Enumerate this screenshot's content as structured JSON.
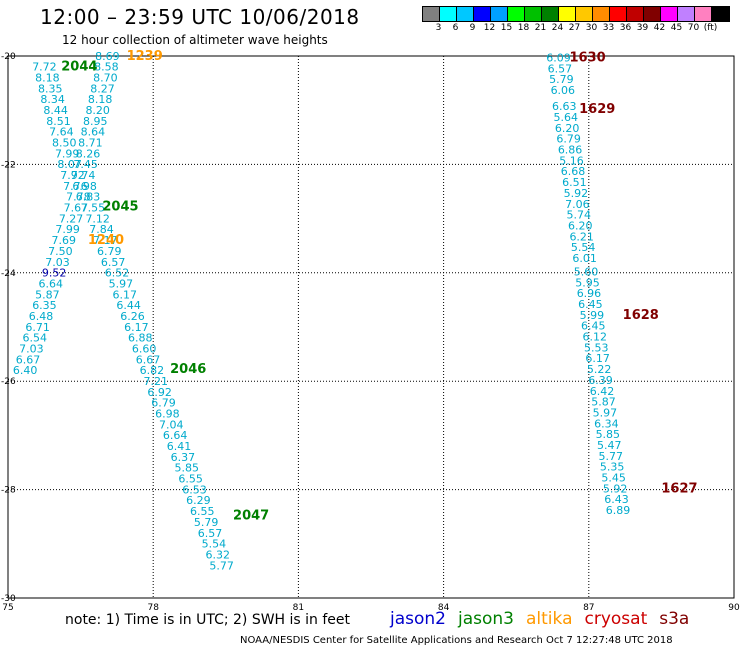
{
  "header": {
    "title": "12:00 – 23:59 UTC 10/06/2018",
    "subtitle": "12 hour collection of altimeter wave heights"
  },
  "legend": {
    "colors": [
      "#808080",
      "#00ffff",
      "#00c8ff",
      "#0000ff",
      "#00a0ff",
      "#00ff00",
      "#00c000",
      "#008000",
      "#ffff00",
      "#ffc800",
      "#ff8c00",
      "#ff0000",
      "#c00000",
      "#800000",
      "#ff00ff",
      "#c080ff",
      "#ff80c0",
      "#000000"
    ],
    "labels": [
      "3",
      "6",
      "9",
      "12",
      "15",
      "18",
      "21",
      "24",
      "27",
      "30",
      "33",
      "36",
      "39",
      "42",
      "45",
      "70",
      "(ft)"
    ]
  },
  "footer": {
    "note": "note: 1) Time is in UTC; 2) SWH is in feet",
    "satellites": [
      {
        "name": "jason2",
        "color": "#0000cc"
      },
      {
        "name": "jason3",
        "color": "#008000"
      },
      {
        "name": "altika",
        "color": "#ff9900"
      },
      {
        "name": "cryosat",
        "color": "#cc0000"
      },
      {
        "name": "s3a",
        "color": "#800000"
      }
    ],
    "credit": "NOAA/NESDIS Center for Satellite Applications and Research    Oct  7 12:27:48 UTC 2018"
  },
  "chart_data": {
    "type": "scatter",
    "title": "12:00 – 23:59 UTC 10/06/2018",
    "subtitle": "12 hour collection of altimeter wave heights",
    "xlabel": "",
    "ylabel": "",
    "xlim": [
      75,
      90
    ],
    "ylim": [
      -30,
      -20
    ],
    "x_ticks": [
      75,
      78,
      81,
      84,
      87,
      90
    ],
    "y_ticks": [
      -20,
      -22,
      -24,
      -26,
      -28,
      -30
    ],
    "grid": true,
    "point_color": "#00aacc",
    "series": [
      {
        "name": "jason3",
        "pass_labels": [
          {
            "text": "2044",
            "x": 76.1,
            "y": -20.27,
            "color": "#008000"
          },
          {
            "text": "2045",
            "x": 76.95,
            "y": -22.85,
            "color": "#008000"
          },
          {
            "text": "2046",
            "x": 78.35,
            "y": -25.85,
            "color": "#008000"
          },
          {
            "text": "2047",
            "x": 79.65,
            "y": -28.55,
            "color": "#008000"
          }
        ],
        "points": [
          {
            "x": 75.5,
            "y": -20.27,
            "v": "7.72"
          },
          {
            "x": 75.56,
            "y": -20.47,
            "v": "8.18"
          },
          {
            "x": 75.62,
            "y": -20.67,
            "v": "8.35"
          },
          {
            "x": 75.67,
            "y": -20.87,
            "v": "8.34"
          },
          {
            "x": 75.73,
            "y": -21.07,
            "v": "8.44"
          },
          {
            "x": 75.79,
            "y": -21.27,
            "v": "8.51"
          },
          {
            "x": 75.85,
            "y": -21.47,
            "v": "7.64"
          },
          {
            "x": 75.91,
            "y": -21.67,
            "v": "8.50"
          },
          {
            "x": 75.97,
            "y": -21.87,
            "v": "7.99"
          },
          {
            "x": 76.02,
            "y": -22.07,
            "v": "8.07"
          },
          {
            "x": 76.08,
            "y": -22.27,
            "v": "7.92"
          },
          {
            "x": 76.14,
            "y": -22.47,
            "v": "7.76"
          },
          {
            "x": 76.2,
            "y": -22.67,
            "v": "7.78"
          },
          {
            "x": 76.15,
            "y": -22.87,
            "v": "7.67"
          },
          {
            "x": 76.05,
            "y": -23.07,
            "v": "7.27"
          },
          {
            "x": 75.98,
            "y": -23.27,
            "v": "7.99"
          },
          {
            "x": 75.9,
            "y": -23.47,
            "v": "7.69"
          },
          {
            "x": 75.83,
            "y": -23.67,
            "v": "7.50"
          },
          {
            "x": 75.77,
            "y": -23.87,
            "v": "7.03"
          },
          {
            "x": 75.7,
            "y": -24.07,
            "v": "9.52",
            "color": "#0000aa"
          },
          {
            "x": 75.63,
            "y": -24.27,
            "v": "6.64"
          },
          {
            "x": 75.56,
            "y": -24.47,
            "v": "5.87"
          },
          {
            "x": 75.5,
            "y": -24.67,
            "v": "6.35"
          },
          {
            "x": 75.43,
            "y": -24.87,
            "v": "6.48"
          },
          {
            "x": 75.36,
            "y": -25.07,
            "v": "6.71"
          },
          {
            "x": 75.3,
            "y": -25.27,
            "v": "6.54"
          },
          {
            "x": 75.23,
            "y": -25.47,
            "v": "7.03"
          },
          {
            "x": 75.16,
            "y": -25.67,
            "v": "6.67"
          },
          {
            "x": 75.1,
            "y": -25.87,
            "v": "6.40"
          },
          {
            "x": 76.8,
            "y": -20.07,
            "v": "8.69"
          },
          {
            "x": 76.78,
            "y": -20.27,
            "v": "8.58"
          },
          {
            "x": 76.76,
            "y": -20.47,
            "v": "8.70"
          },
          {
            "x": 76.7,
            "y": -20.67,
            "v": "8.27"
          },
          {
            "x": 76.65,
            "y": -20.87,
            "v": "8.18"
          },
          {
            "x": 76.6,
            "y": -21.07,
            "v": "8.20"
          },
          {
            "x": 76.55,
            "y": -21.27,
            "v": "8.95"
          },
          {
            "x": 76.5,
            "y": -21.47,
            "v": "8.64"
          },
          {
            "x": 76.45,
            "y": -21.67,
            "v": "8.71"
          },
          {
            "x": 76.4,
            "y": -21.87,
            "v": "8.26"
          },
          {
            "x": 76.35,
            "y": -22.07,
            "v": "7.45"
          },
          {
            "x": 76.3,
            "y": -22.27,
            "v": "7.74"
          },
          {
            "x": 76.33,
            "y": -22.47,
            "v": "6.98"
          },
          {
            "x": 76.4,
            "y": -22.67,
            "v": "6.83"
          },
          {
            "x": 76.5,
            "y": -22.87,
            "v": "7.55"
          },
          {
            "x": 76.6,
            "y": -23.07,
            "v": "7.12"
          },
          {
            "x": 76.68,
            "y": -23.27,
            "v": "7.84"
          },
          {
            "x": 76.76,
            "y": -23.47,
            "v": "7.17"
          },
          {
            "x": 76.84,
            "y": -23.67,
            "v": "6.79"
          },
          {
            "x": 76.92,
            "y": -23.87,
            "v": "6.57"
          },
          {
            "x": 77.0,
            "y": -24.07,
            "v": "6.52"
          },
          {
            "x": 77.08,
            "y": -24.27,
            "v": "5.97"
          },
          {
            "x": 77.16,
            "y": -24.47,
            "v": "6.17"
          },
          {
            "x": 77.24,
            "y": -24.67,
            "v": "6.44"
          },
          {
            "x": 77.32,
            "y": -24.87,
            "v": "6.26"
          },
          {
            "x": 77.4,
            "y": -25.07,
            "v": "6.17"
          },
          {
            "x": 77.48,
            "y": -25.27,
            "v": "6.88"
          },
          {
            "x": 77.56,
            "y": -25.47,
            "v": "6.60"
          },
          {
            "x": 77.64,
            "y": -25.67,
            "v": "6.67"
          },
          {
            "x": 77.72,
            "y": -25.87,
            "v": "6.82"
          },
          {
            "x": 77.8,
            "y": -26.07,
            "v": "7.21"
          },
          {
            "x": 77.88,
            "y": -26.27,
            "v": "6.92"
          },
          {
            "x": 77.96,
            "y": -26.47,
            "v": "6.79"
          },
          {
            "x": 78.04,
            "y": -26.67,
            "v": "6.98"
          },
          {
            "x": 78.12,
            "y": -26.87,
            "v": "7.04"
          },
          {
            "x": 78.2,
            "y": -27.07,
            "v": "6.64"
          },
          {
            "x": 78.28,
            "y": -27.27,
            "v": "6.41"
          },
          {
            "x": 78.36,
            "y": -27.47,
            "v": "6.37"
          },
          {
            "x": 78.44,
            "y": -27.67,
            "v": "5.85"
          },
          {
            "x": 78.52,
            "y": -27.87,
            "v": "6.55"
          },
          {
            "x": 78.6,
            "y": -28.07,
            "v": "6.53"
          },
          {
            "x": 78.68,
            "y": -28.27,
            "v": "6.29"
          },
          {
            "x": 78.76,
            "y": -28.47,
            "v": "6.55"
          },
          {
            "x": 78.84,
            "y": -28.67,
            "v": "5.79"
          },
          {
            "x": 78.92,
            "y": -28.87,
            "v": "6.57"
          },
          {
            "x": 79.0,
            "y": -29.07,
            "v": "5.54"
          },
          {
            "x": 79.08,
            "y": -29.27,
            "v": "6.32"
          },
          {
            "x": 79.16,
            "y": -29.47,
            "v": "5.77"
          }
        ]
      },
      {
        "name": "altika",
        "pass_labels": [
          {
            "text": "1239",
            "x": 77.45,
            "y": -20.07,
            "color": "#ff9900"
          },
          {
            "text": "1240",
            "x": 76.65,
            "y": -23.47,
            "color": "#ff9900"
          }
        ],
        "points": []
      },
      {
        "name": "s3a",
        "pass_labels": [
          {
            "text": "1630",
            "x": 86.6,
            "y": -20.1,
            "color": "#800000"
          },
          {
            "text": "1629",
            "x": 86.8,
            "y": -21.05,
            "color": "#800000"
          },
          {
            "text": "1628",
            "x": 87.7,
            "y": -24.85,
            "color": "#800000"
          },
          {
            "text": "1627",
            "x": 88.5,
            "y": -28.05,
            "color": "#800000"
          }
        ],
        "points": [
          {
            "x": 86.12,
            "y": -20.1,
            "v": "6.09"
          },
          {
            "x": 86.15,
            "y": -20.3,
            "v": "6.57"
          },
          {
            "x": 86.18,
            "y": -20.5,
            "v": "5.79"
          },
          {
            "x": 86.21,
            "y": -20.7,
            "v": "6.06"
          },
          {
            "x": 86.24,
            "y": -21.0,
            "v": "6.63"
          },
          {
            "x": 86.27,
            "y": -21.2,
            "v": "5.64"
          },
          {
            "x": 86.3,
            "y": -21.4,
            "v": "6.20"
          },
          {
            "x": 86.33,
            "y": -21.6,
            "v": "6.79"
          },
          {
            "x": 86.36,
            "y": -21.8,
            "v": "6.86"
          },
          {
            "x": 86.39,
            "y": -22.0,
            "v": "5.16"
          },
          {
            "x": 86.42,
            "y": -22.2,
            "v": "6.68"
          },
          {
            "x": 86.45,
            "y": -22.4,
            "v": "6.51"
          },
          {
            "x": 86.48,
            "y": -22.6,
            "v": "5.92"
          },
          {
            "x": 86.51,
            "y": -22.8,
            "v": "7.06"
          },
          {
            "x": 86.54,
            "y": -23.0,
            "v": "5.74"
          },
          {
            "x": 86.57,
            "y": -23.2,
            "v": "6.20"
          },
          {
            "x": 86.6,
            "y": -23.4,
            "v": "6.21"
          },
          {
            "x": 86.63,
            "y": -23.6,
            "v": "5.54"
          },
          {
            "x": 86.66,
            "y": -23.8,
            "v": "6.01"
          },
          {
            "x": 86.69,
            "y": -24.05,
            "v": "5.60"
          },
          {
            "x": 86.72,
            "y": -24.25,
            "v": "5.95"
          },
          {
            "x": 86.75,
            "y": -24.45,
            "v": "6.96"
          },
          {
            "x": 86.78,
            "y": -24.65,
            "v": "6.45"
          },
          {
            "x": 86.81,
            "y": -24.85,
            "v": "5.99"
          },
          {
            "x": 86.84,
            "y": -25.05,
            "v": "6.45"
          },
          {
            "x": 86.87,
            "y": -25.25,
            "v": "6.12"
          },
          {
            "x": 86.9,
            "y": -25.45,
            "v": "5.53"
          },
          {
            "x": 86.93,
            "y": -25.65,
            "v": "6.17"
          },
          {
            "x": 86.96,
            "y": -25.85,
            "v": "5.22"
          },
          {
            "x": 86.99,
            "y": -26.05,
            "v": "6.39"
          },
          {
            "x": 87.02,
            "y": -26.25,
            "v": "6.42"
          },
          {
            "x": 87.05,
            "y": -26.45,
            "v": "5.87"
          },
          {
            "x": 87.08,
            "y": -26.65,
            "v": "5.97"
          },
          {
            "x": 87.11,
            "y": -26.85,
            "v": "6.34"
          },
          {
            "x": 87.14,
            "y": -27.05,
            "v": "5.85"
          },
          {
            "x": 87.17,
            "y": -27.25,
            "v": "5.47"
          },
          {
            "x": 87.2,
            "y": -27.45,
            "v": "5.77"
          },
          {
            "x": 87.23,
            "y": -27.65,
            "v": "5.35"
          },
          {
            "x": 87.26,
            "y": -27.85,
            "v": "5.45"
          },
          {
            "x": 87.29,
            "y": -28.05,
            "v": "5.92"
          },
          {
            "x": 87.32,
            "y": -28.25,
            "v": "6.43"
          },
          {
            "x": 87.35,
            "y": -28.45,
            "v": "6.89"
          }
        ]
      }
    ]
  }
}
